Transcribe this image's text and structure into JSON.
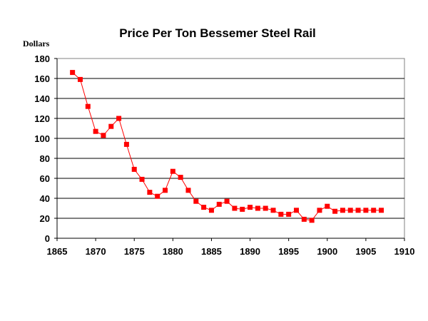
{
  "chart_data": {
    "type": "line",
    "title": "Price Per Ton Bessemer Steel Rail",
    "xlabel": "",
    "ylabel": "Dollars",
    "xlim": [
      1865,
      1910
    ],
    "ylim": [
      0,
      180
    ],
    "xticks": [
      1865,
      1870,
      1875,
      1880,
      1885,
      1890,
      1895,
      1900,
      1905,
      1910
    ],
    "yticks": [
      0,
      20,
      40,
      60,
      80,
      100,
      120,
      140,
      160,
      180
    ],
    "grid": "horizontal",
    "legend": "none",
    "series": [
      {
        "name": "Price Per Ton",
        "color": "#ff0000",
        "x": [
          1867,
          1868,
          1869,
          1870,
          1871,
          1872,
          1873,
          1874,
          1875,
          1876,
          1877,
          1878,
          1879,
          1880,
          1881,
          1882,
          1883,
          1884,
          1885,
          1886,
          1887,
          1888,
          1889,
          1890,
          1891,
          1892,
          1893,
          1894,
          1895,
          1896,
          1897,
          1898,
          1899,
          1900,
          1901,
          1902,
          1903,
          1904,
          1905,
          1906,
          1907
        ],
        "y": [
          166,
          159,
          132,
          107,
          103,
          112,
          120,
          94,
          69,
          59,
          46,
          42,
          48,
          67,
          61,
          48,
          37,
          31,
          28,
          34,
          37,
          30,
          29,
          31,
          30,
          30,
          28,
          24,
          24,
          28,
          19,
          18,
          28,
          32,
          27,
          28,
          28,
          28,
          28,
          28,
          28
        ]
      }
    ]
  }
}
